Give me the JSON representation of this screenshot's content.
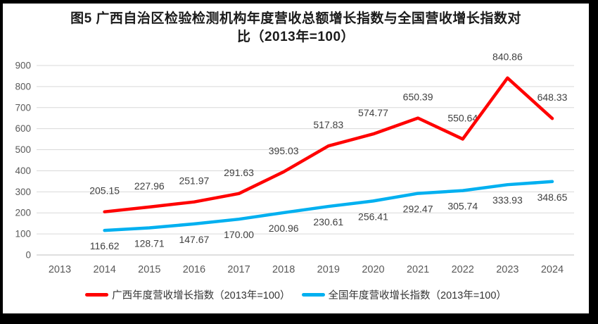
{
  "title": {
    "line1": "图5  广西自治区检验检测机构年度营收总额增长指数与全国营收增长指数对",
    "line2": "比（2013年=100）"
  },
  "chart_data": {
    "type": "line",
    "x": [
      2013,
      2014,
      2015,
      2016,
      2017,
      2018,
      2019,
      2020,
      2021,
      2022,
      2023,
      2024
    ],
    "x_labels": [
      "2013",
      "2014",
      "2015",
      "2016",
      "2017",
      "2018",
      "2019",
      "2020",
      "2021",
      "2022",
      "2023",
      "2024"
    ],
    "y_ticks": [
      0,
      100,
      200,
      300,
      400,
      500,
      600,
      700,
      800,
      900
    ],
    "ylim": [
      0,
      900
    ],
    "grid": true,
    "legend_position": "bottom",
    "series": [
      {
        "name": "广西年度营收增长指数（2013年=100）",
        "color": "#FF0000",
        "start_year": 2014,
        "values": [
          205.15,
          227.96,
          251.97,
          291.63,
          395.03,
          517.83,
          574.77,
          650.39,
          550.64,
          840.86,
          648.33
        ],
        "labels": [
          "205.15",
          "227.96",
          "251.97",
          "291.63",
          "395.03",
          "517.83",
          "574.77",
          "650.39",
          "550.64",
          "840.86",
          "648.33"
        ],
        "label_position": "above"
      },
      {
        "name": "全国年度营收增长指数（2013年=100）",
        "color": "#00B0F0",
        "start_year": 2014,
        "values": [
          116.62,
          128.71,
          147.67,
          170.0,
          200.96,
          230.61,
          256.41,
          292.47,
          305.74,
          333.93,
          348.65
        ],
        "labels": [
          "116.62",
          "128.71",
          "147.67",
          "170.00",
          "200.96",
          "230.61",
          "256.41",
          "292.47",
          "305.74",
          "333.93",
          "348.65"
        ],
        "label_position": "below"
      }
    ],
    "colors": {
      "gridline": "#D9D9D9",
      "axis_line": "#BFBFBF",
      "tick_label": "#595959",
      "data_label": "#404040"
    }
  }
}
